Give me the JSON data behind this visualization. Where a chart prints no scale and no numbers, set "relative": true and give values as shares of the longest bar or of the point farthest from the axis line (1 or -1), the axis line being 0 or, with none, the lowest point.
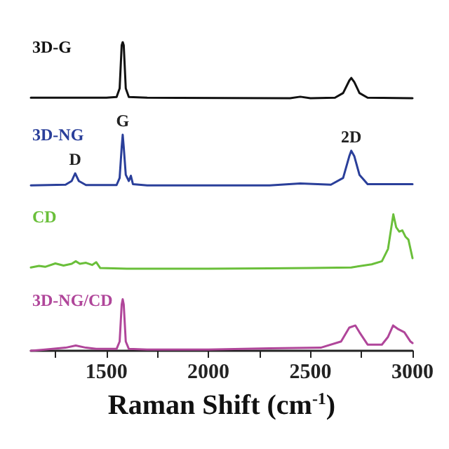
{
  "chart_data": {
    "type": "line",
    "relative": true,
    "xlabel": "Raman Shift (cm$^{-1}$)",
    "xlim": [
      1130,
      3000
    ],
    "xticks": [
      {
        "value": 1250,
        "label": null
      },
      1500,
      {
        "value": 1750,
        "label": null
      },
      2000,
      {
        "value": 2250,
        "label": null
      },
      2500,
      {
        "value": 2750,
        "label": null
      },
      3000
    ],
    "grid": false,
    "legend": false,
    "marker": "none",
    "line_style": "solid",
    "series": [
      {
        "name": "3D-G",
        "color": "#111111",
        "x": [
          1130,
          1500,
          1550,
          1565,
          1575,
          1580,
          1585,
          1595,
          1610,
          1700,
          2400,
          2450,
          2500,
          2620,
          2660,
          2690,
          2700,
          2715,
          2740,
          2780,
          3000
        ],
        "values": [
          0.82,
          0.82,
          0.822,
          0.85,
          0.99,
          1.0,
          0.99,
          0.85,
          0.822,
          0.82,
          0.818,
          0.823,
          0.818,
          0.82,
          0.835,
          0.875,
          0.884,
          0.87,
          0.835,
          0.82,
          0.818
        ]
      },
      {
        "name": "3D-NG",
        "color": "#2a3f9a",
        "x": [
          1130,
          1300,
          1330,
          1347,
          1365,
          1400,
          1550,
          1565,
          1575,
          1580,
          1585,
          1595,
          1610,
          1620,
          1630,
          1700,
          2300,
          2450,
          2600,
          2660,
          2690,
          2700,
          2715,
          2740,
          2780,
          3000
        ],
        "values": [
          0.536,
          0.538,
          0.55,
          0.575,
          0.55,
          0.537,
          0.537,
          0.56,
          0.66,
          0.7,
          0.66,
          0.57,
          0.55,
          0.567,
          0.54,
          0.536,
          0.536,
          0.542,
          0.538,
          0.56,
          0.63,
          0.648,
          0.63,
          0.57,
          0.54,
          0.54
        ]
      },
      {
        "name": "CD",
        "color": "#6abf3a",
        "x": [
          1130,
          1170,
          1200,
          1250,
          1290,
          1330,
          1350,
          1370,
          1400,
          1430,
          1450,
          1470,
          1600,
          2000,
          2300,
          2500,
          2700,
          2800,
          2850,
          2880,
          2906,
          2920,
          2935,
          2950,
          2965,
          2980,
          3000
        ],
        "values": [
          0.27,
          0.275,
          0.272,
          0.283,
          0.276,
          0.282,
          0.29,
          0.282,
          0.285,
          0.278,
          0.287,
          0.268,
          0.266,
          0.266,
          0.267,
          0.268,
          0.27,
          0.28,
          0.29,
          0.33,
          0.442,
          0.4,
          0.386,
          0.39,
          0.37,
          0.36,
          0.3
        ]
      },
      {
        "name": "3D-NG/CD",
        "color": "#b0469a",
        "x": [
          1130,
          1200,
          1300,
          1350,
          1400,
          1450,
          1550,
          1565,
          1575,
          1580,
          1585,
          1595,
          1610,
          1700,
          2000,
          2300,
          2550,
          2650,
          2690,
          2720,
          2740,
          2780,
          2850,
          2880,
          2905,
          2930,
          2960,
          2990,
          3000
        ],
        "values": [
          0.0,
          0.004,
          0.01,
          0.017,
          0.01,
          0.006,
          0.006,
          0.03,
          0.15,
          0.167,
          0.15,
          0.03,
          0.006,
          0.004,
          0.004,
          0.008,
          0.01,
          0.03,
          0.075,
          0.082,
          0.06,
          0.02,
          0.02,
          0.045,
          0.082,
          0.07,
          0.06,
          0.03,
          0.025
        ]
      }
    ],
    "annotations": [
      {
        "text": "D",
        "x": 1347,
        "y": 0.575
      },
      {
        "text": "G",
        "x": 1580,
        "y": 0.7
      },
      {
        "text": "2D",
        "x": 2700,
        "y": 0.648
      }
    ]
  }
}
